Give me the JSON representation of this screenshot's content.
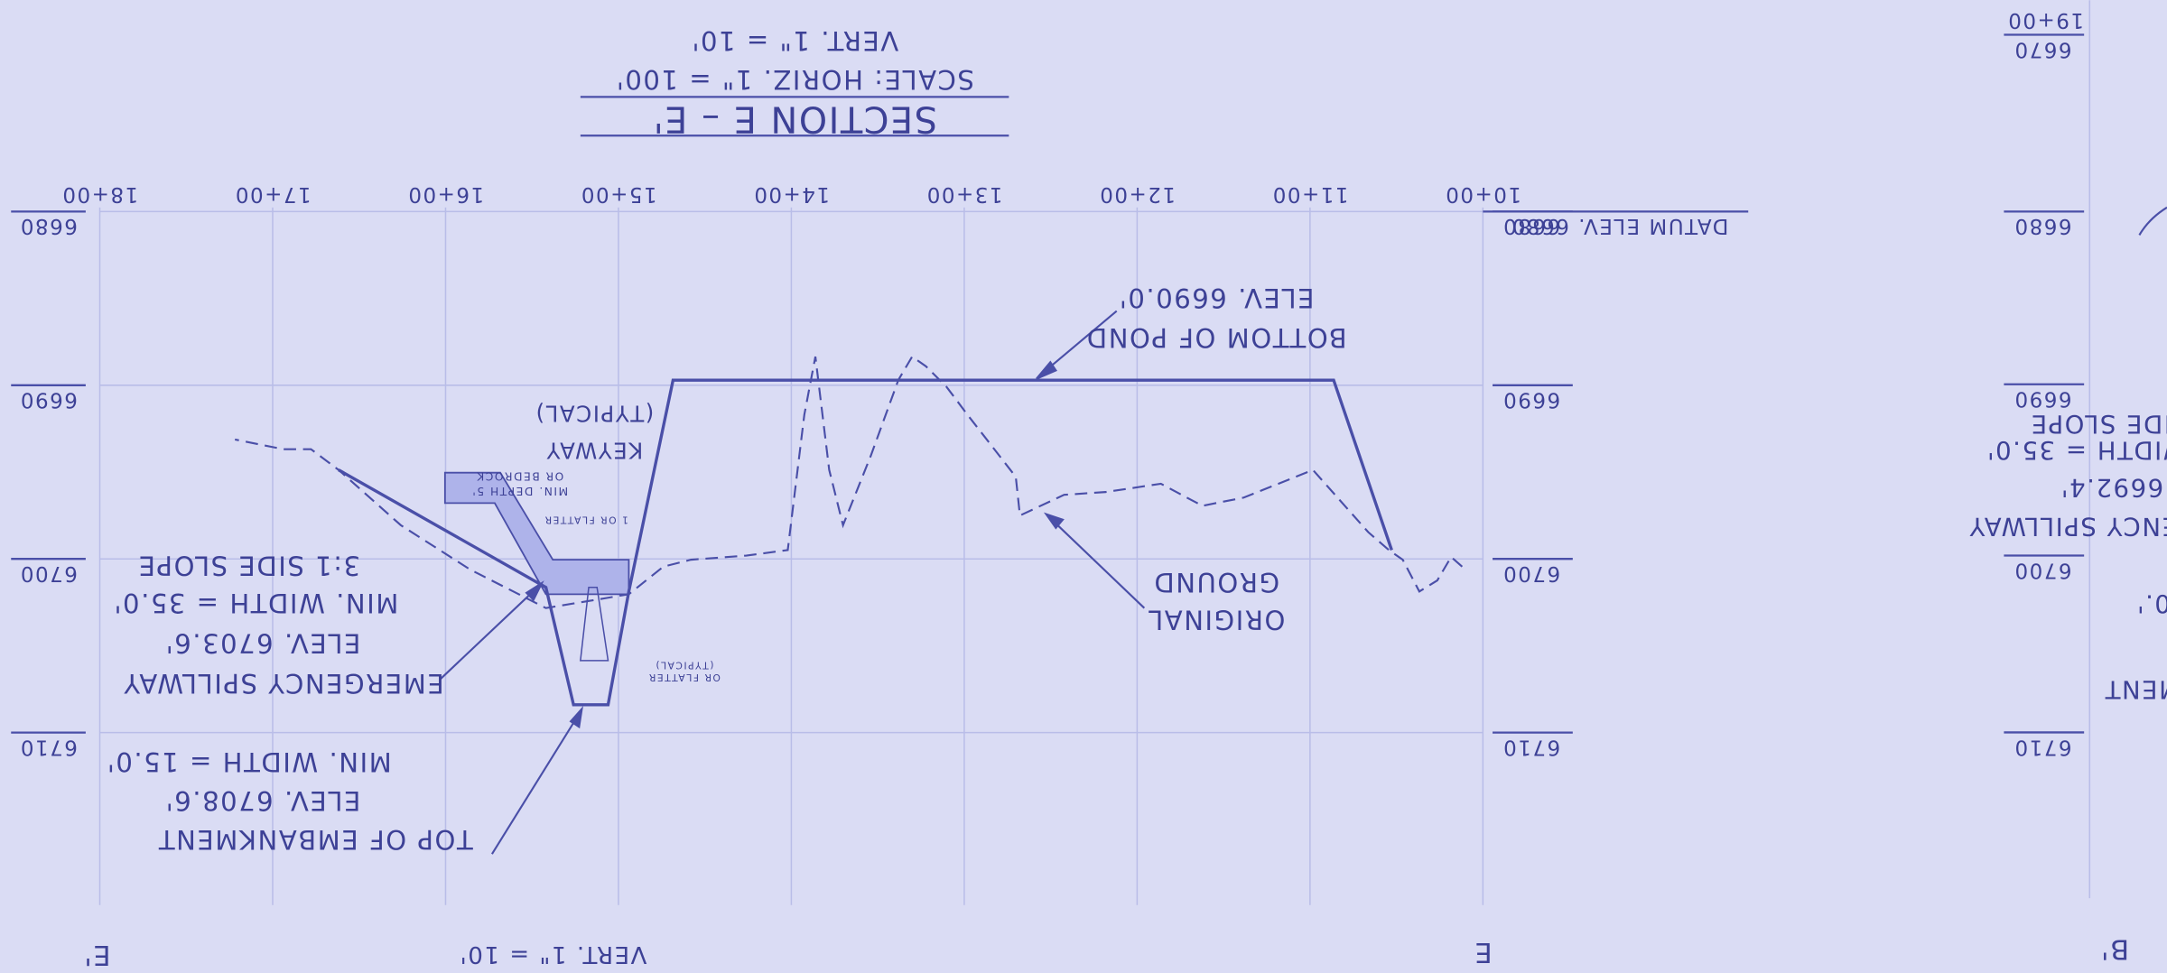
{
  "title": {
    "section": "SECTION E – E'",
    "scale_horizontal": "SCALE: HORIZ. 1\" = 100'",
    "scale_vertical": "VERT. 1\" = 10'"
  },
  "datum": "DATUM ELEV. 6680",
  "stations": [
    "10+00",
    "11+00",
    "12+00",
    "13+00",
    "14+00",
    "15+00",
    "16+00",
    "17+00",
    "18+00"
  ],
  "elevations": [
    6680,
    6690,
    6700,
    6710
  ],
  "annotations": {
    "bottom_of_pond": [
      "BOTTOM OF POND",
      "ELEV. 6690.0'"
    ],
    "original_ground": [
      "ORIGINAL",
      "GROUND"
    ],
    "keyway": [
      "KEYWAY",
      "(TYPICAL)"
    ],
    "keyway_depth": [
      "MIN. DEPTH 5'",
      "OR BEDROCK"
    ],
    "emergency_spillway": [
      "EMERGENCY SPILLWAY",
      "ELEV. 6703.6'",
      "MIN. WIDTH = 35.0'",
      "3:1 SIDE SLOPE"
    ],
    "top_of_embankment": [
      "TOP OF EMBANKMENT",
      "ELEV. 6708.6'",
      "MIN. WIDTH = 15.0'"
    ],
    "slope_notes": [
      "1 OR FLATTER",
      "OR FLATTER",
      "(TYPICAL)"
    ]
  },
  "section_marks": {
    "left": "E'",
    "right": "E",
    "vertical_scale": "VERT. 1\" = 10'"
  },
  "adjacent_section": {
    "mark": "B'",
    "station": "19+00",
    "elevations": [
      6670,
      6680,
      6690,
      6700,
      6710
    ],
    "fragments": [
      "IDE SLOPE",
      "WIDTH = 35.0'",
      "6692.4'",
      "ENCY SPILLWAY",
      "0.'",
      "MENT"
    ]
  }
}
